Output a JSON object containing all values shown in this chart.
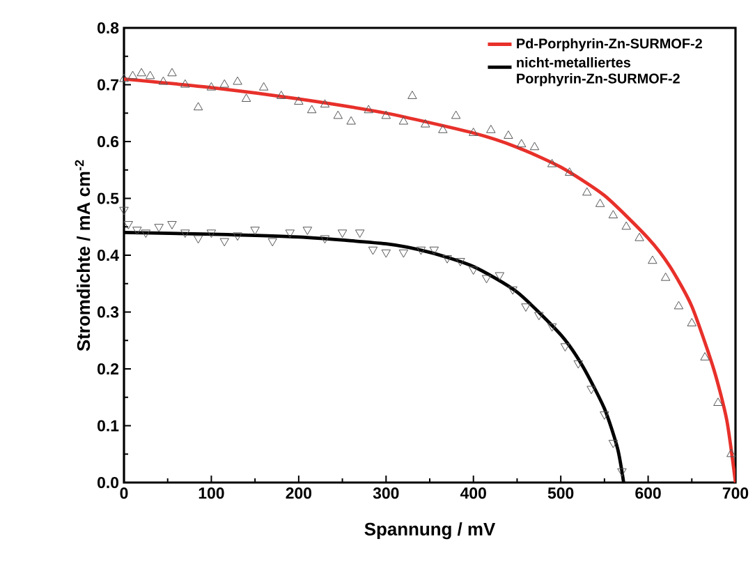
{
  "chart_data": {
    "type": "scatter",
    "xlabel": "Spannung / mV",
    "ylabel": "Stromdichte / mA cm$^{-2}$",
    "xlim": [
      0,
      700
    ],
    "ylim": [
      0,
      0.8
    ],
    "xticks": [
      0,
      100,
      200,
      300,
      400,
      500,
      600,
      700
    ],
    "yticks": [
      {
        "value": 0,
        "label": "0.0"
      },
      0.1,
      0.2,
      0.3,
      0.4,
      0.5,
      0.6,
      0.7,
      0.8
    ],
    "grid": false,
    "legend": "top right",
    "series": [
      {
        "marker": "triangle",
        "color": "#555555",
        "x": [
          0,
          10,
          20,
          30,
          45,
          55,
          70,
          85,
          100,
          115,
          130,
          140,
          160,
          180,
          200,
          215,
          230,
          245,
          260,
          280,
          300,
          320,
          330,
          345,
          365,
          380,
          400,
          420,
          440,
          455,
          470,
          490,
          510,
          530,
          545,
          560,
          575,
          590,
          605,
          620,
          635,
          650,
          665,
          680,
          695
        ],
        "values": [
          0.71,
          0.715,
          0.72,
          0.715,
          0.705,
          0.72,
          0.7,
          0.66,
          0.695,
          0.7,
          0.705,
          0.675,
          0.695,
          0.68,
          0.67,
          0.655,
          0.665,
          0.645,
          0.635,
          0.655,
          0.645,
          0.635,
          0.68,
          0.63,
          0.62,
          0.645,
          0.615,
          0.62,
          0.61,
          0.595,
          0.59,
          0.56,
          0.545,
          0.51,
          0.49,
          0.47,
          0.45,
          0.43,
          0.39,
          0.36,
          0.31,
          0.28,
          0.22,
          0.14,
          0.05
        ]
      },
      {
        "marker": "triangle-down",
        "color": "#555555",
        "x": [
          0,
          5,
          15,
          25,
          40,
          55,
          70,
          85,
          100,
          115,
          130,
          150,
          170,
          190,
          210,
          230,
          250,
          270,
          285,
          300,
          320,
          340,
          355,
          370,
          385,
          400,
          415,
          430,
          445,
          460,
          475,
          490,
          505,
          520,
          535,
          550,
          560,
          570
        ],
        "values": [
          0.48,
          0.455,
          0.445,
          0.44,
          0.45,
          0.455,
          0.44,
          0.43,
          0.44,
          0.425,
          0.435,
          0.445,
          0.425,
          0.44,
          0.445,
          0.43,
          0.44,
          0.44,
          0.41,
          0.405,
          0.405,
          0.41,
          0.41,
          0.395,
          0.39,
          0.375,
          0.36,
          0.365,
          0.34,
          0.31,
          0.295,
          0.275,
          0.24,
          0.21,
          0.165,
          0.12,
          0.07,
          0.02
        ]
      },
      {
        "type": "line",
        "name": "Pd-Porphyrin-Zn-SURMOF-2",
        "color": "#e8302a",
        "marker": "none",
        "x": [
          0,
          100,
          200,
          300,
          400,
          450,
          500,
          550,
          600,
          625,
          650,
          675,
          690,
          700
        ],
        "values": [
          0.71,
          0.695,
          0.675,
          0.65,
          0.615,
          0.59,
          0.555,
          0.505,
          0.43,
          0.38,
          0.31,
          0.2,
          0.11,
          0.0
        ]
      },
      {
        "type": "line",
        "name": "nicht-metalliertes Porphyrin-Zn-SURMOF-2",
        "color": "#000000",
        "marker": "none",
        "x": [
          0,
          100,
          200,
          300,
          350,
          400,
          450,
          500,
          525,
          550,
          565,
          572
        ],
        "values": [
          0.44,
          0.437,
          0.432,
          0.42,
          0.405,
          0.38,
          0.335,
          0.26,
          0.205,
          0.13,
          0.06,
          0.0
        ]
      }
    ]
  }
}
